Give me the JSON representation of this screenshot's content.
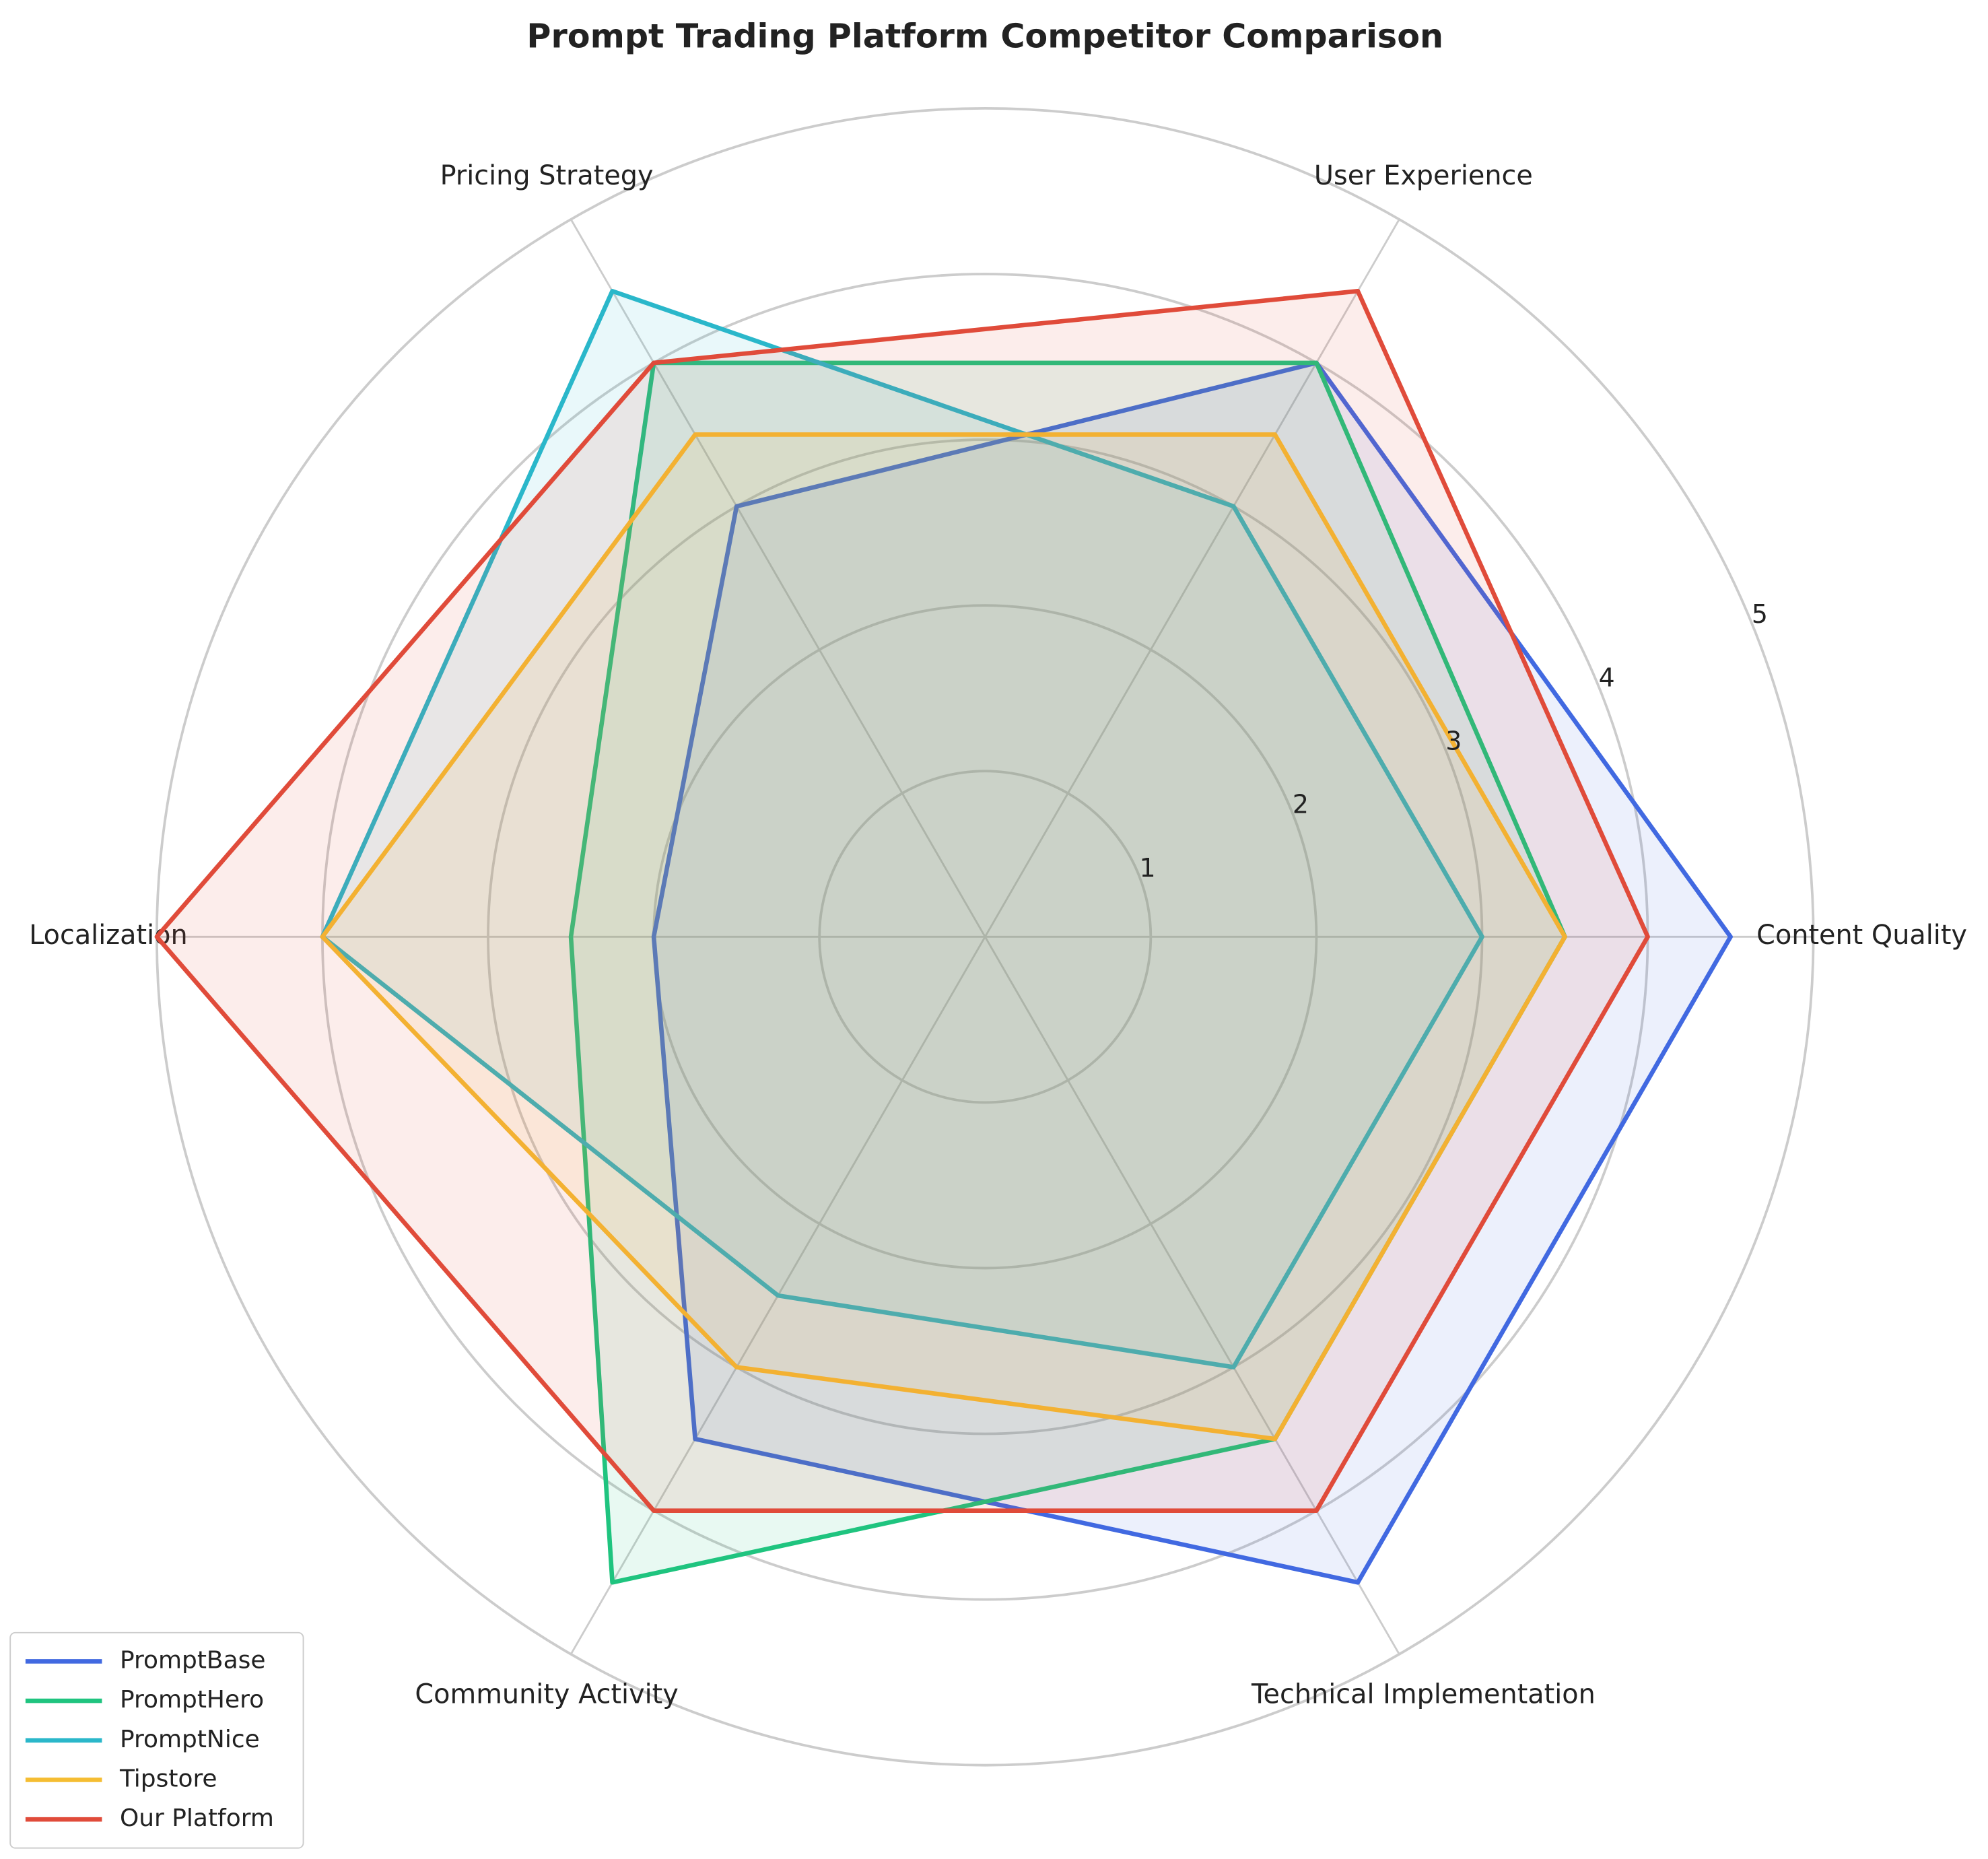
{
  "chart_data": {
    "type": "radar",
    "title": "Prompt Trading Platform Competitor Comparison",
    "categories": [
      "Content Quality",
      "User Experience",
      "Pricing Strategy",
      "Localization",
      "Community Activity",
      "Technical Implementation"
    ],
    "series": [
      {
        "name": "PromptBase",
        "color": "#4169e1",
        "values": [
          4.5,
          4.0,
          3.0,
          2.0,
          3.5,
          4.5
        ]
      },
      {
        "name": "PromptHero",
        "color": "#1fc47f",
        "values": [
          3.5,
          4.0,
          4.0,
          2.5,
          4.5,
          3.5
        ]
      },
      {
        "name": "PromptNice",
        "color": "#2ab7ca",
        "values": [
          3.0,
          3.0,
          4.5,
          4.0,
          2.5,
          3.0
        ]
      },
      {
        "name": "Tipstore",
        "color": "#f5bd32",
        "values": [
          3.5,
          3.5,
          3.5,
          4.0,
          3.0,
          3.5
        ]
      },
      {
        "name": "Our Platform",
        "color": "#e04b3a",
        "values": [
          4.0,
          4.5,
          4.0,
          5.0,
          4.0,
          4.0
        ]
      }
    ],
    "ylim": [
      0,
      5
    ],
    "yticks": [
      1,
      2,
      3,
      4,
      5
    ],
    "grid": true,
    "legend": "lower left"
  }
}
